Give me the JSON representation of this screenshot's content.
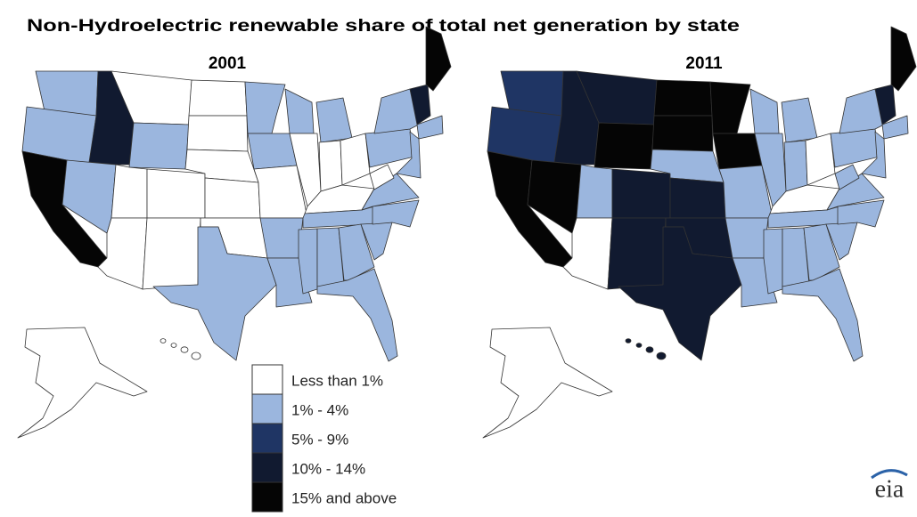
{
  "title": "Non-Hydroelectric renewable share of total net generation by state",
  "maps": [
    {
      "year": "2001"
    },
    {
      "year": "2011"
    }
  ],
  "legend": [
    {
      "label": "Less than 1%",
      "color": "#ffffff"
    },
    {
      "label": "1% - 4%",
      "color": "#9bb6de"
    },
    {
      "label": "5% - 9%",
      "color": "#1f3564"
    },
    {
      "label": "10% - 14%",
      "color": "#111a30"
    },
    {
      "label": "15% and above",
      "color": "#050505"
    }
  ],
  "logo": "eia"
}
